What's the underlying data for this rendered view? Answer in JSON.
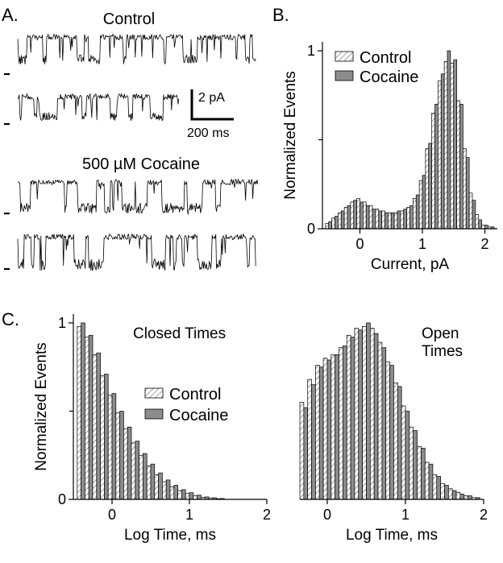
{
  "panel_a": {
    "letter": "A.",
    "title_top": "Control",
    "title_bottom": "500 µM Cocaine",
    "scale_current": "2 pA",
    "scale_time": "200 ms"
  },
  "colors": {
    "control_fill": "#ffffff",
    "control_hatch": "#777777",
    "cocaine_fill": "#8c8c8c",
    "edge": "#000000",
    "trace": "#000000"
  },
  "chart_data": [
    {
      "id": "B",
      "letter": "B.",
      "type": "bar",
      "title": "",
      "xlabel": "Current, pA",
      "ylabel": "Normalized  Events",
      "xlim": [
        -0.6,
        2.2
      ],
      "ylim": [
        0,
        1.05
      ],
      "xticks": [
        0,
        1,
        2
      ],
      "yticks": [
        0,
        1
      ],
      "yticks_minor": [
        0.5
      ],
      "legend": "top-left",
      "bin_width": 0.1,
      "x": [
        -0.5,
        -0.4,
        -0.3,
        -0.2,
        -0.1,
        0.0,
        0.1,
        0.2,
        0.3,
        0.4,
        0.5,
        0.6,
        0.7,
        0.8,
        0.9,
        1.0,
        1.1,
        1.2,
        1.3,
        1.4,
        1.5,
        1.6,
        1.7,
        1.8,
        1.9,
        2.0,
        2.1
      ],
      "series": [
        {
          "name": "Control",
          "values": [
            0.03,
            0.06,
            0.09,
            0.12,
            0.15,
            0.17,
            0.15,
            0.13,
            0.11,
            0.1,
            0.09,
            0.09,
            0.1,
            0.12,
            0.17,
            0.27,
            0.45,
            0.65,
            0.83,
            0.94,
            0.93,
            0.72,
            0.45,
            0.2,
            0.08,
            0.02,
            0.01
          ]
        },
        {
          "name": "Cocaine",
          "values": [
            0.04,
            0.07,
            0.1,
            0.13,
            0.16,
            0.15,
            0.13,
            0.11,
            0.1,
            0.09,
            0.09,
            0.1,
            0.11,
            0.13,
            0.19,
            0.3,
            0.48,
            0.7,
            0.87,
            1.0,
            0.95,
            0.7,
            0.4,
            0.16,
            0.05,
            0.02,
            0.01
          ]
        }
      ]
    },
    {
      "id": "C-closed",
      "letter": "C.",
      "type": "bar",
      "title": "Closed Times",
      "xlabel": "Log Time, ms",
      "ylabel": "Normalized  Events",
      "xlim": [
        -0.5,
        2.0
      ],
      "ylim": [
        0,
        1.05
      ],
      "xticks": [
        0,
        1,
        2
      ],
      "yticks": [
        0,
        1
      ],
      "yticks_minor": [
        0.5
      ],
      "legend": "center",
      "bin_width": 0.1,
      "x": [
        -0.4,
        -0.3,
        -0.2,
        -0.1,
        0.0,
        0.1,
        0.2,
        0.3,
        0.4,
        0.5,
        0.6,
        0.7,
        0.8,
        0.9,
        1.0,
        1.1,
        1.2,
        1.3,
        1.4
      ],
      "series": [
        {
          "name": "Control",
          "values": [
            0.98,
            0.92,
            0.82,
            0.7,
            0.59,
            0.49,
            0.4,
            0.32,
            0.25,
            0.19,
            0.14,
            0.1,
            0.07,
            0.05,
            0.035,
            0.02,
            0.012,
            0.008,
            0.004
          ]
        },
        {
          "name": "Cocaine",
          "values": [
            1.0,
            0.93,
            0.83,
            0.71,
            0.6,
            0.5,
            0.41,
            0.33,
            0.26,
            0.2,
            0.15,
            0.11,
            0.08,
            0.055,
            0.038,
            0.024,
            0.014,
            0.009,
            0.005
          ]
        }
      ]
    },
    {
      "id": "C-open",
      "type": "bar",
      "title": "Open\nTimes",
      "xlabel": "Log Time, ms",
      "ylabel": "",
      "xlim": [
        -0.35,
        2.0
      ],
      "ylim": [
        0,
        1.05
      ],
      "xticks": [
        0,
        1,
        2
      ],
      "yticks": [],
      "legend": "none",
      "bin_width": 0.1,
      "x": [
        -0.3,
        -0.2,
        -0.1,
        0.0,
        0.1,
        0.2,
        0.3,
        0.4,
        0.5,
        0.6,
        0.7,
        0.8,
        0.9,
        1.0,
        1.1,
        1.2,
        1.3,
        1.4,
        1.5,
        1.6,
        1.7,
        1.8,
        1.9
      ],
      "series": [
        {
          "name": "Control",
          "values": [
            0.55,
            0.68,
            0.76,
            0.8,
            0.82,
            0.86,
            0.93,
            0.97,
            0.98,
            0.97,
            0.89,
            0.78,
            0.66,
            0.53,
            0.41,
            0.3,
            0.21,
            0.14,
            0.09,
            0.06,
            0.04,
            0.02,
            0.01
          ]
        },
        {
          "name": "Cocaine",
          "values": [
            0.52,
            0.65,
            0.75,
            0.79,
            0.82,
            0.87,
            0.92,
            0.96,
            1.0,
            0.94,
            0.86,
            0.76,
            0.64,
            0.5,
            0.39,
            0.29,
            0.2,
            0.13,
            0.08,
            0.05,
            0.03,
            0.02,
            0.01
          ]
        }
      ]
    }
  ]
}
